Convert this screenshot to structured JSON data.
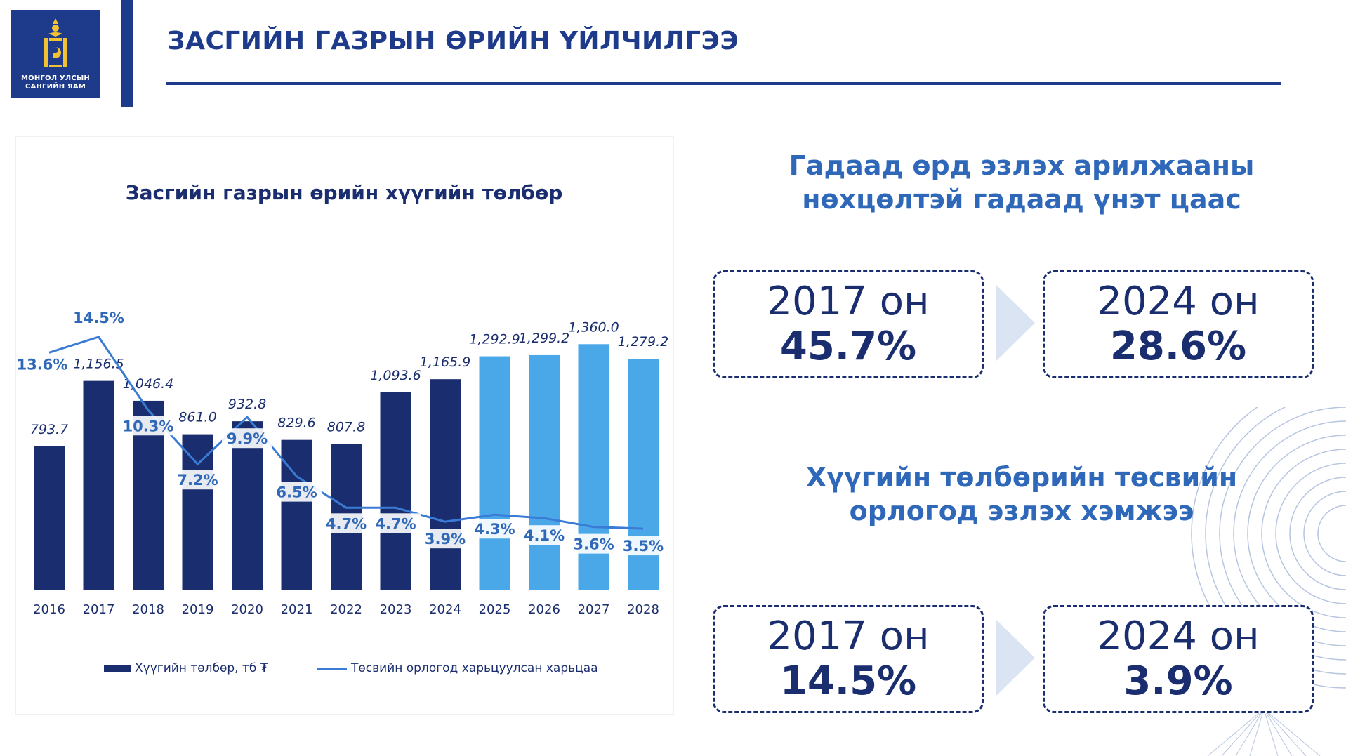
{
  "logo": {
    "line1": "МОНГОЛ УЛСЫН",
    "line2": "САНГИЙН ЯАМ"
  },
  "page_title": "ЗАСГИЙН ГАЗРЫН ӨРИЙН ҮЙЛЧИЛГЭЭ",
  "colors": {
    "navy": "#1a2d6e",
    "bar_actual": "#1a2d6e",
    "bar_forecast": "#4aa8e8",
    "line": "#3a7bd5",
    "heading_blue": "#2f68b9"
  },
  "chart_data": {
    "type": "bar",
    "title": "Засгийн газрын өрийн хүүгийн төлбөр",
    "categories": [
      "2016",
      "2017",
      "2018",
      "2019",
      "2020",
      "2021",
      "2022",
      "2023",
      "2024",
      "2025",
      "2026",
      "2027",
      "2028"
    ],
    "series": [
      {
        "name": "Хүүгийн төлбөр, тб ₮",
        "type": "bar",
        "values": [
          793.7,
          1156.5,
          1046.4,
          861.0,
          932.8,
          829.6,
          807.8,
          1093.6,
          1165.9,
          1292.9,
          1299.2,
          1360.0,
          1279.2
        ],
        "value_labels": [
          "793.7",
          "1,156.5",
          "1,046.4",
          "861.0",
          "932.8",
          "829.6",
          "807.8",
          "1,093.6",
          "1,165.9",
          "1,292.9",
          "1,299.2",
          "1,360.0",
          "1,279.2"
        ],
        "forecast_from": "2025"
      },
      {
        "name": "Төсвийн орлогод харьцуулсан харьцаа",
        "type": "line",
        "values": [
          13.6,
          14.5,
          10.3,
          7.2,
          9.9,
          6.5,
          4.7,
          4.7,
          3.9,
          4.3,
          4.1,
          3.6,
          3.5
        ],
        "value_labels": [
          "13.6%",
          "14.5%",
          "10.3%",
          "7.2%",
          "9.9%",
          "6.5%",
          "4.7%",
          "4.7%",
          "3.9%",
          "4.3%",
          "4.1%",
          "3.6%",
          "3.5%"
        ]
      }
    ],
    "legend": [
      "Хүүгийн төлбөр, тб ₮",
      "Төсвийн орлогод харьцуулсан харьцаа"
    ],
    "legend_position": "bottom"
  },
  "section1": {
    "title_line1": "Гадаад өрд эзлэх арилжааны",
    "title_line2": "нөхцөлтэй гадаад үнэт цаас",
    "left": {
      "year": "2017 он",
      "value": "45.7%"
    },
    "right": {
      "year": "2024 он",
      "value": "28.6%"
    }
  },
  "section2": {
    "title_line1": "Хүүгийн төлбөрийн төсвийн",
    "title_line2": "орлогод эзлэх хэмжээ",
    "left": {
      "year": "2017 он",
      "value": "14.5%"
    },
    "right": {
      "year": "2024 он",
      "value": "3.9%"
    }
  },
  "icons": {
    "logo": "soyombo-emblem-icon",
    "arrow": "chevron-right-icon"
  }
}
